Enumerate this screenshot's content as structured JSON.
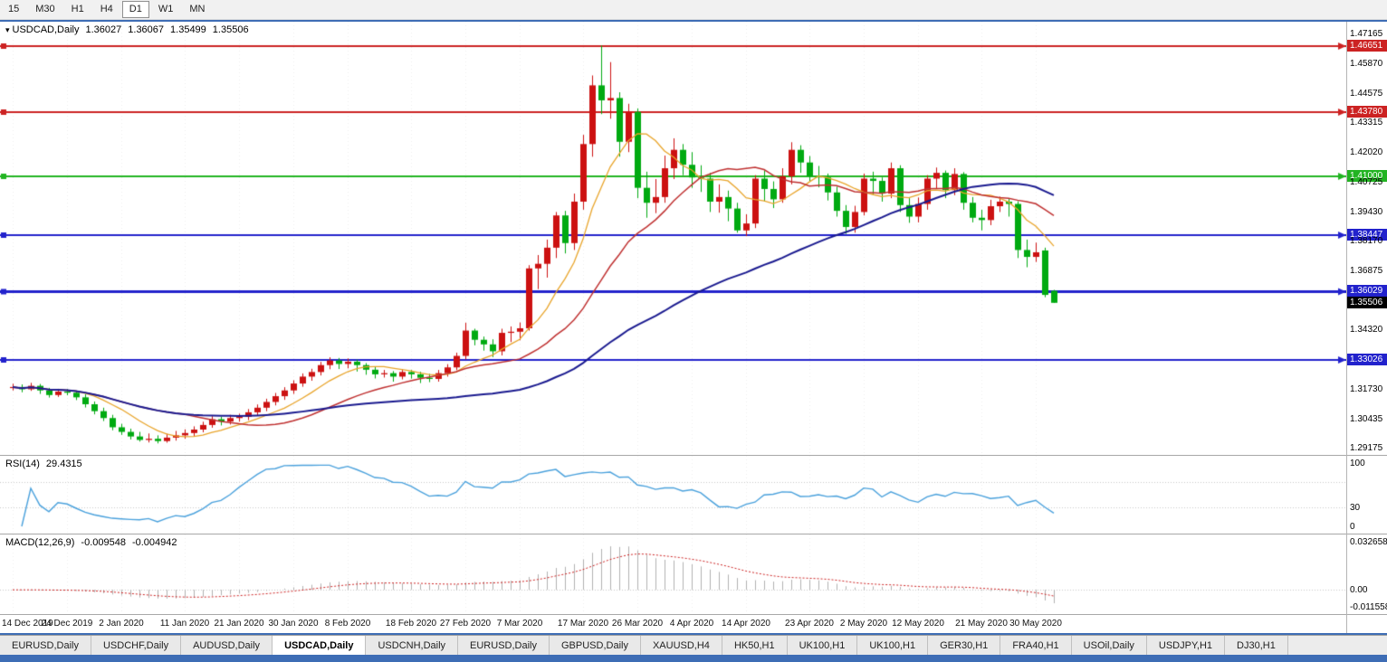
{
  "toolbar": {
    "timeframes": [
      {
        "label": "15",
        "active": false
      },
      {
        "label": "M30",
        "active": false
      },
      {
        "label": "H1",
        "active": false
      },
      {
        "label": "H4",
        "active": false
      },
      {
        "label": "D1",
        "active": true
      },
      {
        "label": "W1",
        "active": false
      },
      {
        "label": "MN",
        "active": false
      }
    ]
  },
  "chart": {
    "symbol": "USDCAD,Daily",
    "ohlc": {
      "open": "1.36027",
      "high": "1.36067",
      "low": "1.35499",
      "close": "1.35506"
    }
  },
  "chart_data": {
    "type": "candlestick",
    "title": "USDCAD,Daily",
    "y_min": 1.29175,
    "y_max": 1.47165,
    "current_price": 1.35506,
    "colors": {
      "up": "#cc1111",
      "down": "#00aa11",
      "background": "#ffffff"
    },
    "candles": [
      [
        1.3182,
        1.3199,
        1.317,
        1.3185
      ],
      [
        1.3185,
        1.3196,
        1.3162,
        1.3175
      ],
      [
        1.3175,
        1.3203,
        1.3168,
        1.319
      ],
      [
        1.319,
        1.3198,
        1.3155,
        1.317
      ],
      [
        1.317,
        1.3181,
        1.3139,
        1.315
      ],
      [
        1.315,
        1.3177,
        1.3142,
        1.3165
      ],
      [
        1.3165,
        1.3176,
        1.3149,
        1.316
      ],
      [
        1.316,
        1.3169,
        1.3128,
        1.314
      ],
      [
        1.314,
        1.3153,
        1.3096,
        1.311
      ],
      [
        1.311,
        1.3122,
        1.3066,
        1.308
      ],
      [
        1.308,
        1.3095,
        1.3037,
        1.305
      ],
      [
        1.305,
        1.3064,
        1.2997,
        1.301
      ],
      [
        1.301,
        1.3025,
        1.2977,
        1.299
      ],
      [
        1.299,
        1.3004,
        1.2957,
        1.297
      ],
      [
        1.297,
        1.299,
        1.2948,
        1.2955
      ],
      [
        1.2955,
        1.2983,
        1.2944,
        1.296
      ],
      [
        1.296,
        1.2975,
        1.294,
        1.295
      ],
      [
        1.295,
        1.2982,
        1.2943,
        1.2965
      ],
      [
        1.2965,
        1.2994,
        1.2952,
        1.2975
      ],
      [
        1.2975,
        1.3001,
        1.296,
        1.2985
      ],
      [
        1.2985,
        1.3014,
        1.2972,
        1.3
      ],
      [
        1.3,
        1.3034,
        1.2988,
        1.302
      ],
      [
        1.302,
        1.3058,
        1.3008,
        1.3045
      ],
      [
        1.3045,
        1.3056,
        1.3018,
        1.3035
      ],
      [
        1.3035,
        1.3064,
        1.3022,
        1.305
      ],
      [
        1.305,
        1.3069,
        1.3034,
        1.3055
      ],
      [
        1.3055,
        1.3089,
        1.3041,
        1.3075
      ],
      [
        1.3075,
        1.3109,
        1.306,
        1.3095
      ],
      [
        1.3095,
        1.3134,
        1.308,
        1.312
      ],
      [
        1.312,
        1.3159,
        1.3105,
        1.3145
      ],
      [
        1.3145,
        1.3184,
        1.3129,
        1.317
      ],
      [
        1.317,
        1.3214,
        1.3155,
        1.32
      ],
      [
        1.32,
        1.3244,
        1.3186,
        1.323
      ],
      [
        1.323,
        1.3264,
        1.3212,
        1.325
      ],
      [
        1.325,
        1.3294,
        1.3235,
        1.328
      ],
      [
        1.328,
        1.3314,
        1.3262,
        1.33
      ],
      [
        1.33,
        1.3311,
        1.3263,
        1.3285
      ],
      [
        1.3285,
        1.3309,
        1.3266,
        1.3295
      ],
      [
        1.3295,
        1.3304,
        1.3252,
        1.328
      ],
      [
        1.328,
        1.3289,
        1.3238,
        1.326
      ],
      [
        1.326,
        1.3272,
        1.3222,
        1.324
      ],
      [
        1.324,
        1.3259,
        1.3226,
        1.3245
      ],
      [
        1.3245,
        1.3254,
        1.3208,
        1.323
      ],
      [
        1.323,
        1.3263,
        1.3218,
        1.325
      ],
      [
        1.325,
        1.3259,
        1.3221,
        1.324
      ],
      [
        1.324,
        1.3251,
        1.3202,
        1.3225
      ],
      [
        1.3225,
        1.3242,
        1.3206,
        1.322
      ],
      [
        1.322,
        1.3259,
        1.3208,
        1.3245
      ],
      [
        1.3245,
        1.3284,
        1.323,
        1.327
      ],
      [
        1.327,
        1.3334,
        1.3258,
        1.332
      ],
      [
        1.332,
        1.3464,
        1.3305,
        1.343
      ],
      [
        1.343,
        1.3438,
        1.3366,
        1.339
      ],
      [
        1.339,
        1.3404,
        1.3343,
        1.337
      ],
      [
        1.337,
        1.3392,
        1.3315,
        1.334
      ],
      [
        1.334,
        1.3438,
        1.3322,
        1.342
      ],
      [
        1.342,
        1.3448,
        1.338,
        1.3425
      ],
      [
        1.3425,
        1.3465,
        1.3388,
        1.344
      ],
      [
        1.344,
        1.3714,
        1.343,
        1.37
      ],
      [
        1.37,
        1.3758,
        1.361,
        1.372
      ],
      [
        1.372,
        1.3825,
        1.366,
        1.379
      ],
      [
        1.379,
        1.3945,
        1.3745,
        1.393
      ],
      [
        1.393,
        1.395,
        1.3765,
        1.381
      ],
      [
        1.381,
        1.4025,
        1.378,
        1.399
      ],
      [
        1.399,
        1.428,
        1.3955,
        1.424
      ],
      [
        1.424,
        1.4538,
        1.4185,
        1.4495
      ],
      [
        1.4495,
        1.4668,
        1.437,
        1.443
      ],
      [
        1.443,
        1.4596,
        1.435,
        1.444
      ],
      [
        1.444,
        1.4465,
        1.4185,
        1.425
      ],
      [
        1.425,
        1.4415,
        1.4205,
        1.438
      ],
      [
        1.438,
        1.4395,
        1.4005,
        1.405
      ],
      [
        1.405,
        1.412,
        1.392,
        1.3985
      ],
      [
        1.3985,
        1.4088,
        1.394,
        1.401
      ],
      [
        1.401,
        1.419,
        1.3985,
        1.4135
      ],
      [
        1.4135,
        1.4265,
        1.4088,
        1.4215
      ],
      [
        1.4215,
        1.424,
        1.4105,
        1.415
      ],
      [
        1.415,
        1.4205,
        1.405,
        1.4095
      ],
      [
        1.4095,
        1.4148,
        1.4032,
        1.409
      ],
      [
        1.409,
        1.4115,
        1.3945,
        1.399
      ],
      [
        1.399,
        1.4065,
        1.3942,
        1.401
      ],
      [
        1.401,
        1.4038,
        1.3905,
        1.396
      ],
      [
        1.396,
        1.3985,
        1.3855,
        1.3865
      ],
      [
        1.3865,
        1.3935,
        1.384,
        1.3895
      ],
      [
        1.3895,
        1.4105,
        1.3875,
        1.409
      ],
      [
        1.409,
        1.4125,
        1.399,
        1.4045
      ],
      [
        1.4045,
        1.4078,
        1.3962,
        1.4
      ],
      [
        1.4,
        1.4135,
        1.3985,
        1.41
      ],
      [
        1.41,
        1.4248,
        1.4065,
        1.4215
      ],
      [
        1.4215,
        1.4235,
        1.4115,
        1.416
      ],
      [
        1.416,
        1.4188,
        1.408,
        1.41
      ],
      [
        1.41,
        1.4145,
        1.4052,
        1.4095
      ],
      [
        1.4095,
        1.4112,
        1.3995,
        1.403
      ],
      [
        1.403,
        1.4055,
        1.3925,
        1.395
      ],
      [
        1.395,
        1.3975,
        1.385,
        1.388
      ],
      [
        1.388,
        1.3972,
        1.3855,
        1.3945
      ],
      [
        1.3945,
        1.4112,
        1.393,
        1.409
      ],
      [
        1.409,
        1.412,
        1.402,
        1.408
      ],
      [
        1.408,
        1.4095,
        1.399,
        1.4025
      ],
      [
        1.4025,
        1.416,
        1.4005,
        1.4135
      ],
      [
        1.4135,
        1.4148,
        1.3945,
        1.3975
      ],
      [
        1.3975,
        1.4005,
        1.3898,
        1.3925
      ],
      [
        1.3925,
        1.4008,
        1.39,
        1.398
      ],
      [
        1.398,
        1.4105,
        1.3955,
        1.409
      ],
      [
        1.409,
        1.4138,
        1.4045,
        1.4115
      ],
      [
        1.4115,
        1.4125,
        1.4005,
        1.404
      ],
      [
        1.404,
        1.4135,
        1.4018,
        1.411
      ],
      [
        1.411,
        1.4118,
        1.3955,
        1.3985
      ],
      [
        1.3985,
        1.401,
        1.39,
        1.392
      ],
      [
        1.392,
        1.3955,
        1.3865,
        1.391
      ],
      [
        1.391,
        1.3998,
        1.3888,
        1.397
      ],
      [
        1.397,
        1.4012,
        1.3945,
        1.399
      ],
      [
        1.399,
        1.4002,
        1.3925,
        1.398
      ],
      [
        1.398,
        1.3992,
        1.3745,
        1.378
      ],
      [
        1.378,
        1.3825,
        1.3705,
        1.375
      ],
      [
        1.375,
        1.3812,
        1.3728,
        1.377
      ],
      [
        1.3778,
        1.379,
        1.3575,
        1.3585
      ],
      [
        1.36027,
        1.36067,
        1.35499,
        1.35506
      ]
    ],
    "x_labels": [
      {
        "label": "14 Dec 2019",
        "i": 0
      },
      {
        "label": "24 Dec 2019",
        "i": 6
      },
      {
        "label": "2 Jan 2020",
        "i": 12
      },
      {
        "label": "11 Jan 2020",
        "i": 19
      },
      {
        "label": "21 Jan 2020",
        "i": 25
      },
      {
        "label": "30 Jan 2020",
        "i": 31
      },
      {
        "label": "8 Feb 2020",
        "i": 37
      },
      {
        "label": "18 Feb 2020",
        "i": 44
      },
      {
        "label": "27 Feb 2020",
        "i": 50
      },
      {
        "label": "7 Mar 2020",
        "i": 56
      },
      {
        "label": "17 Mar 2020",
        "i": 63
      },
      {
        "label": "26 Mar 2020",
        "i": 69
      },
      {
        "label": "4 Apr 2020",
        "i": 75
      },
      {
        "label": "14 Apr 2020",
        "i": 81
      },
      {
        "label": "23 Apr 2020",
        "i": 88
      },
      {
        "label": "2 May 2020",
        "i": 94
      },
      {
        "label": "12 May 2020",
        "i": 100
      },
      {
        "label": "21 May 2020",
        "i": 107
      },
      {
        "label": "30 May 2020",
        "i": 113
      }
    ],
    "y_ticks": [
      {
        "v": 1.47165,
        "text": "1.47165",
        "hl": "none"
      },
      {
        "v": 1.46651,
        "text": "1.46651",
        "hl": "red"
      },
      {
        "v": 1.4587,
        "text": "1.45870",
        "hl": "none"
      },
      {
        "v": 1.44575,
        "text": "1.44575",
        "hl": "none"
      },
      {
        "v": 1.4378,
        "text": "1.43780",
        "hl": "red"
      },
      {
        "v": 1.43315,
        "text": "1.43315",
        "hl": "none"
      },
      {
        "v": 1.4202,
        "text": "1.42020",
        "hl": "none"
      },
      {
        "v": 1.41,
        "text": "1.41000",
        "hl": "green"
      },
      {
        "v": 1.40725,
        "text": "1.40725",
        "hl": "none"
      },
      {
        "v": 1.3943,
        "text": "1.39430",
        "hl": "none"
      },
      {
        "v": 1.38447,
        "text": "1.38447",
        "hl": "blue"
      },
      {
        "v": 1.3817,
        "text": "1.38170",
        "hl": "none"
      },
      {
        "v": 1.36875,
        "text": "1.36875",
        "hl": "none"
      },
      {
        "v": 1.36029,
        "text": "1.36029",
        "hl": "blue"
      },
      {
        "v": 1.35506,
        "text": "1.35506",
        "hl": "black"
      },
      {
        "v": 1.3432,
        "text": "1.34320",
        "hl": "none"
      },
      {
        "v": 1.33026,
        "text": "1.33026",
        "hl": "blue"
      },
      {
        "v": 1.3173,
        "text": "1.31730",
        "hl": "none"
      },
      {
        "v": 1.30435,
        "text": "1.30435",
        "hl": "none"
      },
      {
        "v": 1.29175,
        "text": "1.29175",
        "hl": "none"
      }
    ],
    "hlines": [
      {
        "price": 1.46651,
        "color": "#cc2222",
        "w": 2
      },
      {
        "price": 1.4378,
        "color": "#cc2222",
        "w": 2
      },
      {
        "price": 1.41,
        "color": "#22b422",
        "w": 2
      },
      {
        "price": 1.38447,
        "color": "#2222cc",
        "w": 2
      },
      {
        "price": 1.36029,
        "color": "#2222cc",
        "w": 3
      },
      {
        "price": 1.33026,
        "color": "#2222cc",
        "w": 2
      }
    ],
    "moving_averages": [
      {
        "period": 8,
        "color": "#e8a42a",
        "width": 1.3
      },
      {
        "period": 20,
        "color": "#bf3030",
        "width": 1.5
      },
      {
        "period": 50,
        "color": "#1a1a8f",
        "width": 2
      }
    ],
    "indicators": {
      "rsi": {
        "name": "RSI(14)",
        "value": "29.4315",
        "period": 14,
        "color": "#4aa1dc",
        "levels": [
          30,
          70
        ],
        "scale_labels": [
          {
            "v": 100,
            "text": "100"
          },
          {
            "v": 30,
            "text": "30"
          },
          {
            "v": 0,
            "text": "0"
          }
        ]
      },
      "macd": {
        "name": "MACD(12,26,9)",
        "value_main": "-0.009548",
        "value_signal": "-0.004942",
        "fast": 12,
        "slow": 26,
        "signal": 9,
        "scale_max": 0.032658,
        "scale_min": -0.011558,
        "hist_color": "#b0b0b0",
        "signal_color": "#cc2222",
        "scale_labels": [
          {
            "v": 0.032658,
            "text": "0.032658"
          },
          {
            "v": 0,
            "text": "0.00"
          },
          {
            "v": -0.011558,
            "text": "-0.011558"
          }
        ]
      }
    }
  },
  "tabs": [
    {
      "label": "EURUSD,Daily",
      "active": false
    },
    {
      "label": "USDCHF,Daily",
      "active": false
    },
    {
      "label": "AUDUSD,Daily",
      "active": false
    },
    {
      "label": "USDCAD,Daily",
      "active": true
    },
    {
      "label": "USDCNH,Daily",
      "active": false
    },
    {
      "label": "EURUSD,Daily",
      "active": false
    },
    {
      "label": "GBPUSD,Daily",
      "active": false
    },
    {
      "label": "XAUUSD,H4",
      "active": false
    },
    {
      "label": "HK50,H1",
      "active": false
    },
    {
      "label": "UK100,H1",
      "active": false
    },
    {
      "label": "UK100,H1",
      "active": false
    },
    {
      "label": "GER30,H1",
      "active": false
    },
    {
      "label": "FRA40,H1",
      "active": false
    },
    {
      "label": "USOil,Daily",
      "active": false
    },
    {
      "label": "USDJPY,H1",
      "active": false
    },
    {
      "label": "DJ30,H1",
      "active": false
    }
  ]
}
